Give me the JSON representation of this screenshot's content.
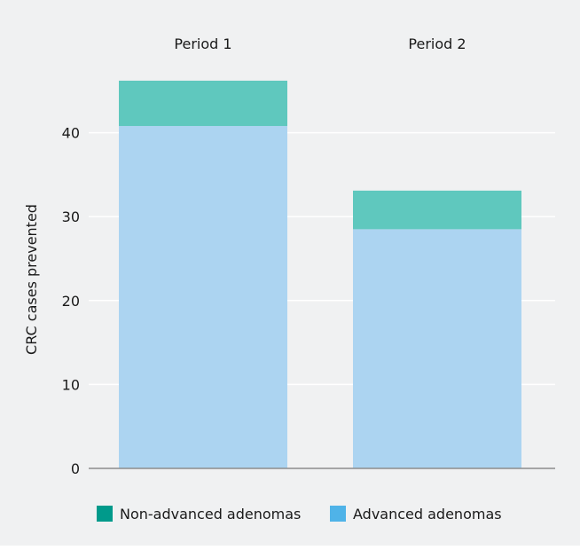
{
  "chart_data": {
    "type": "bar",
    "stacked": true,
    "categories": [
      "Period 1",
      "Period 2"
    ],
    "category_labels_position": "top",
    "series": [
      {
        "name": "Advanced adenomas",
        "values": [
          40.8,
          28.5
        ],
        "color": "#acd4f1"
      },
      {
        "name": "Non-advanced adenomas",
        "values": [
          5.4,
          4.6
        ],
        "color": "#5fc8be"
      }
    ],
    "ylabel": "CRC cases prevented",
    "xlabel": "",
    "ylim": [
      0,
      50
    ],
    "yticks": [
      0,
      10,
      20,
      30,
      40
    ],
    "grid": true,
    "legend": {
      "position": "bottom",
      "order": [
        "Non-advanced adenomas",
        "Advanced adenomas"
      ],
      "swatch_colors": [
        "#009a8b",
        "#4fb3e8"
      ]
    }
  }
}
